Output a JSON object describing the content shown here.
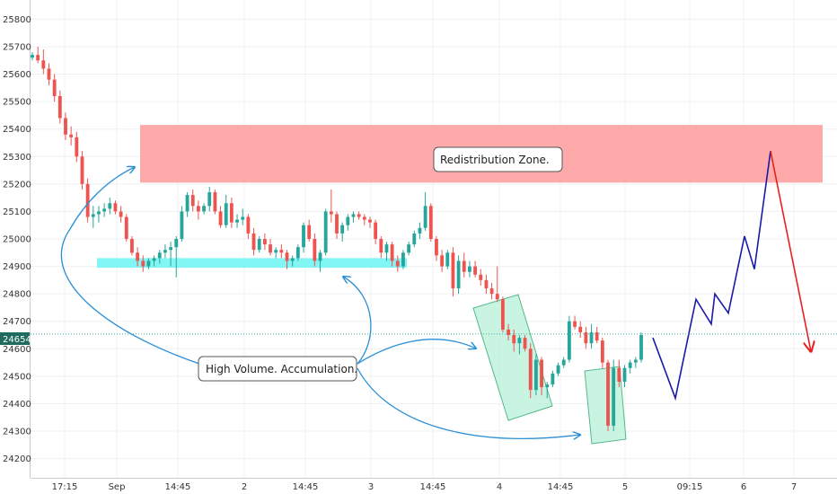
{
  "chart_data": {
    "type": "candlestick",
    "y_ticks": [
      24200,
      24300,
      24400,
      24500,
      24600,
      24700,
      24800,
      24900,
      25000,
      25100,
      25200,
      25300,
      25400,
      25500,
      25600,
      25700,
      25800
    ],
    "ylim": [
      24130,
      25870
    ],
    "x_ticks": [
      "17:15",
      "Sep",
      "14:45",
      "2",
      "14:45",
      "3",
      "14:45",
      "4",
      "14:45",
      "5",
      "09:15",
      "6",
      "7"
    ],
    "price_label": "24654",
    "colors": {
      "up": "#26a69a",
      "down": "#ef5350",
      "projection_up": "#1a1aa8",
      "projection_down": "#e8201f",
      "arrow": "#2a8fd6"
    },
    "candles": [
      [
        25660,
        25680,
        25650,
        25670
      ],
      [
        25670,
        25700,
        25640,
        25650
      ],
      [
        25650,
        25690,
        25600,
        25620
      ],
      [
        25620,
        25640,
        25560,
        25580
      ],
      [
        25580,
        25600,
        25500,
        25520
      ],
      [
        25520,
        25540,
        25420,
        25440
      ],
      [
        25440,
        25460,
        25360,
        25380
      ],
      [
        25380,
        25410,
        25340,
        25370
      ],
      [
        25370,
        25390,
        25280,
        25300
      ],
      [
        25300,
        25320,
        25180,
        25200
      ],
      [
        25200,
        25220,
        25060,
        25080
      ],
      [
        25080,
        25120,
        25040,
        25090
      ],
      [
        25090,
        25120,
        25060,
        25100
      ],
      [
        25100,
        25130,
        25080,
        25110
      ],
      [
        25110,
        25150,
        25090,
        25130
      ],
      [
        25130,
        25140,
        25090,
        25100
      ],
      [
        25100,
        25120,
        25060,
        25080
      ],
      [
        25080,
        25090,
        24990,
        25000
      ],
      [
        25000,
        25010,
        24940,
        24950
      ],
      [
        24950,
        24970,
        24900,
        24920
      ],
      [
        24920,
        24940,
        24880,
        24900
      ],
      [
        24900,
        24930,
        24890,
        24920
      ],
      [
        24920,
        24940,
        24900,
        24930
      ],
      [
        24930,
        24960,
        24910,
        24950
      ],
      [
        24950,
        24980,
        24930,
        24960
      ],
      [
        24960,
        24990,
        24900,
        24970
      ],
      [
        24970,
        25010,
        24860,
        25000
      ],
      [
        25000,
        25120,
        24990,
        25100
      ],
      [
        25100,
        25170,
        25080,
        25160
      ],
      [
        25160,
        25180,
        25100,
        25120
      ],
      [
        25120,
        25140,
        25070,
        25100
      ],
      [
        25100,
        25130,
        25090,
        25120
      ],
      [
        25120,
        25190,
        25100,
        25170
      ],
      [
        25170,
        25180,
        25090,
        25100
      ],
      [
        25100,
        25120,
        25040,
        25050
      ],
      [
        25050,
        25160,
        25040,
        25130
      ],
      [
        25130,
        25150,
        25040,
        25060
      ],
      [
        25060,
        25090,
        25040,
        25070
      ],
      [
        25070,
        25110,
        25050,
        25080
      ],
      [
        25080,
        25090,
        25000,
        25020
      ],
      [
        25020,
        25040,
        24940,
        24960
      ],
      [
        24960,
        25010,
        24950,
        25000
      ],
      [
        25000,
        25020,
        24960,
        24980
      ],
      [
        24980,
        25000,
        24940,
        24950
      ],
      [
        24950,
        24970,
        24930,
        24960
      ],
      [
        24960,
        24980,
        24930,
        24950
      ],
      [
        24950,
        24960,
        24890,
        24920
      ],
      [
        24920,
        24940,
        24900,
        24930
      ],
      [
        24930,
        24980,
        24920,
        24970
      ],
      [
        24970,
        25060,
        24950,
        25050
      ],
      [
        25050,
        25070,
        24990,
        25000
      ],
      [
        25000,
        25020,
        24900,
        24920
      ],
      [
        24920,
        24960,
        24880,
        24950
      ],
      [
        24950,
        25110,
        24940,
        25100
      ],
      [
        25100,
        25180,
        25060,
        25090
      ],
      [
        25090,
        25100,
        25000,
        25020
      ],
      [
        25020,
        25060,
        24990,
        25050
      ],
      [
        25050,
        25090,
        25030,
        25080
      ],
      [
        25080,
        25100,
        25060,
        25090
      ],
      [
        25090,
        25100,
        25070,
        25080
      ],
      [
        25080,
        25090,
        25050,
        25070
      ],
      [
        25070,
        25080,
        25040,
        25060
      ],
      [
        25060,
        25070,
        24980,
        25000
      ],
      [
        25000,
        25010,
        24930,
        24950
      ],
      [
        24950,
        24990,
        24920,
        24980
      ],
      [
        24980,
        24990,
        24900,
        24920
      ],
      [
        24920,
        24940,
        24880,
        24900
      ],
      [
        24900,
        24960,
        24890,
        24950
      ],
      [
        24950,
        24990,
        24940,
        24980
      ],
      [
        24980,
        25030,
        24970,
        25020
      ],
      [
        25020,
        25060,
        25000,
        25040
      ],
      [
        25040,
        25170,
        25030,
        25120
      ],
      [
        25120,
        25130,
        24990,
        25000
      ],
      [
        25000,
        25010,
        24920,
        24940
      ],
      [
        24940,
        24960,
        24880,
        24900
      ],
      [
        24900,
        24960,
        24890,
        24950
      ],
      [
        24950,
        24970,
        24790,
        24820
      ],
      [
        24820,
        24940,
        24800,
        24920
      ],
      [
        24920,
        24950,
        24860,
        24880
      ],
      [
        24880,
        24920,
        24860,
        24900
      ],
      [
        24900,
        24920,
        24860,
        24870
      ],
      [
        24870,
        24890,
        24830,
        24850
      ],
      [
        24850,
        24870,
        24800,
        24820
      ],
      [
        24820,
        24840,
        24780,
        24800
      ],
      [
        24800,
        24900,
        24770,
        24780
      ],
      [
        24780,
        24790,
        24660,
        24670
      ],
      [
        24670,
        24690,
        24630,
        24650
      ],
      [
        24650,
        24670,
        24590,
        24620
      ],
      [
        24620,
        24650,
        24580,
        24640
      ],
      [
        24640,
        24650,
        24590,
        24600
      ],
      [
        24600,
        24620,
        24420,
        24450
      ],
      [
        24450,
        24580,
        24430,
        24560
      ],
      [
        24560,
        24570,
        24430,
        24460
      ],
      [
        24460,
        24480,
        24420,
        24470
      ],
      [
        24470,
        24520,
        24460,
        24510
      ],
      [
        24510,
        24550,
        24500,
        24540
      ],
      [
        24540,
        24570,
        24530,
        24560
      ],
      [
        24560,
        24720,
        24550,
        24700
      ],
      [
        24700,
        24720,
        24670,
        24680
      ],
      [
        24680,
        24700,
        24640,
        24660
      ],
      [
        24660,
        24680,
        24600,
        24620
      ],
      [
        24620,
        24690,
        24600,
        24660
      ],
      [
        24660,
        24680,
        24620,
        24630
      ],
      [
        24630,
        24640,
        24530,
        24550
      ],
      [
        24550,
        24560,
        24300,
        24320
      ],
      [
        24320,
        24560,
        24300,
        24530
      ],
      [
        24530,
        24560,
        24460,
        24480
      ],
      [
        24480,
        24540,
        24460,
        24530
      ],
      [
        24530,
        24560,
        24510,
        24550
      ],
      [
        24550,
        24570,
        24530,
        24560
      ],
      [
        24560,
        24660,
        24550,
        24650
      ]
    ],
    "projection_up": [
      24640,
      24420,
      24780,
      24690,
      24800,
      24730,
      25010,
      24890,
      25320
    ],
    "projection_down": [
      25320,
      24590
    ],
    "zones": [
      {
        "name": "red-zone",
        "price_top": 25415,
        "price_bottom": 25205,
        "color": "#ffaaaa"
      },
      {
        "name": "cyan-zone",
        "price_top": 24930,
        "price_bottom": 24895,
        "color": "#82f5f5"
      },
      {
        "name": "green-box-1",
        "price_top": 24860,
        "price_bottom": 24360,
        "color": "#b8f0d8"
      },
      {
        "name": "green-box-2",
        "price_top": 24540,
        "price_bottom": 24290,
        "color": "#b8f0d8"
      }
    ],
    "annotations": [
      "Redistribution Zone.",
      "High Volume. Accumulation."
    ]
  }
}
